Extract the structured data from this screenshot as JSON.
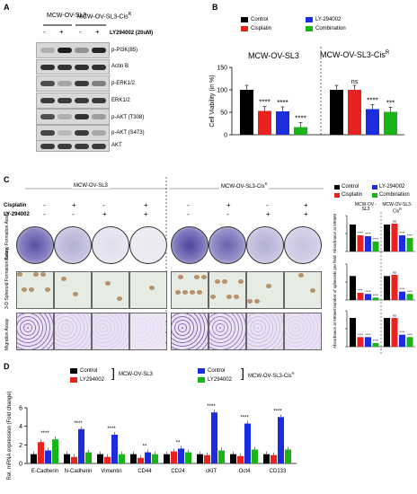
{
  "colors": {
    "control": "#000000",
    "cisplatin": "#e8231f",
    "ly": "#1a2ee0",
    "combination": "#18b418"
  },
  "panelA": {
    "label": "A",
    "group1": "MCW-OV-SL3",
    "group2": "MCW-OV-SL3-Cis",
    "group2_sup": "R",
    "treatment": "LY294002 (20uM)",
    "signs": [
      "-",
      "+",
      "-",
      "+"
    ],
    "blots": [
      "p-PI3K(85)",
      "Actin B",
      "p-ERK1/2",
      "ERK1/2",
      "p-AKT (T308)",
      "p-AKT (S473)",
      "AKT"
    ]
  },
  "panelB": {
    "label": "B",
    "title1": "MCW-OV-SL3",
    "title2": "MCW-OV-SL3-Cis",
    "title2_sup": "R",
    "legend": [
      "Control",
      "LY-294002",
      "Cisplatin",
      "Combination"
    ]
  },
  "panelC": {
    "label": "C",
    "group1": "MCW-OV-SL3",
    "group2": "MCW-OV-SL3-Cis",
    "group2_sup": "R",
    "row_cisplatin": "Cisplatin",
    "row_ly": "LY-294002",
    "cis_signs": [
      "-",
      "+",
      "-",
      "+",
      "-",
      "+",
      "-",
      "+"
    ],
    "ly_signs": [
      "-",
      "-",
      "+",
      "+",
      "-",
      "-",
      "+",
      "+"
    ],
    "assays": [
      "Colony Formation Assay",
      "3-D Spheroid Formation Assay",
      "Migration Assay"
    ],
    "legend": [
      "Control",
      "LY-294002",
      "Cisplatin",
      "Combination"
    ],
    "group_labels": [
      "MCW-OV -SL3",
      "MCW-OV-SL3-Cis"
    ],
    "y_labels": [
      "Absorbance at 590nM",
      "Number of spheroids per field",
      "Absorbance at 590nM"
    ]
  },
  "panelD": {
    "label": "D",
    "legend": [
      "Control",
      "LY294002",
      "Control",
      "LY294002"
    ],
    "group1": "MCW-OV-SL3",
    "group2": "MCW-OV-SL3-Cis",
    "group2_sup": "R"
  },
  "chart_data": [
    {
      "type": "bar",
      "panel": "B",
      "ylabel": "Cell Viability (in %)",
      "ylim": [
        0,
        150
      ],
      "yticks": [
        0,
        50,
        100,
        150
      ],
      "groups": [
        "MCW-OV-SL3",
        "MCW-OV-SL3-CisR"
      ],
      "series": [
        {
          "name": "Control",
          "values": [
            100,
            100
          ]
        },
        {
          "name": "Cisplatin",
          "values": [
            53,
            100
          ]
        },
        {
          "name": "LY-294002",
          "values": [
            52,
            57
          ]
        },
        {
          "name": "Combination",
          "values": [
            17,
            51
          ]
        }
      ],
      "significance": [
        [
          "",
          "****",
          "****",
          "****"
        ],
        [
          "",
          "ns",
          "****",
          "***"
        ]
      ]
    },
    {
      "type": "bar",
      "panel": "C",
      "rows": [
        "Colony Formation",
        "3-D Spheroid Formation",
        "Migration"
      ],
      "groups": [
        "MCW-OV -SL3",
        "MCW-OV-SL3-CisR"
      ],
      "series_order": [
        "Control",
        "Cisplatin",
        "LY-294002",
        "Combination"
      ],
      "values": [
        [
          [
            3.0,
            1.8,
            1.7,
            1.1
          ],
          [
            3.0,
            3.1,
            1.8,
            1.5
          ]
        ],
        [
          [
            40,
            12,
            10,
            4
          ],
          [
            40,
            42,
            14,
            10
          ]
        ],
        [
          [
            2.4,
            0.8,
            0.8,
            0.3
          ],
          [
            2.4,
            2.4,
            1.0,
            0.8
          ]
        ]
      ],
      "significance": [
        [
          [
            "",
            "****",
            "****",
            "****"
          ],
          [
            "",
            "ns",
            "****",
            "****"
          ]
        ],
        [
          [
            "",
            "***",
            "****",
            "****"
          ],
          [
            "",
            "ns",
            "****",
            "****"
          ]
        ],
        [
          [
            "",
            "****",
            "****",
            "****"
          ],
          [
            "",
            "ns",
            "****",
            "****"
          ]
        ]
      ]
    },
    {
      "type": "bar",
      "panel": "D",
      "ylabel": "Rel. mRNA expression (Fold change)",
      "ylim": [
        0,
        6
      ],
      "yticks": [
        0,
        2,
        4,
        6
      ],
      "categories": [
        "E-Cadherin",
        "N-Cadherin",
        "Vimentin",
        "CD44",
        "CD24",
        "cKIT",
        "Oct4",
        "CD133"
      ],
      "series": [
        {
          "name": "Control (MCW-OV-SL3)",
          "values": [
            1.0,
            1.0,
            1.0,
            1.0,
            1.0,
            1.0,
            1.0,
            1.0
          ]
        },
        {
          "name": "LY294002 (MCW-OV-SL3)",
          "values": [
            2.3,
            0.7,
            0.7,
            0.6,
            1.3,
            0.9,
            0.8,
            0.9
          ]
        },
        {
          "name": "Control (MCW-OV-SL3-CisR)",
          "values": [
            1.4,
            3.7,
            3.1,
            1.2,
            1.6,
            5.5,
            4.3,
            5.0
          ]
        },
        {
          "name": "LY294002 (MCW-OV-SL3-CisR)",
          "values": [
            2.6,
            1.2,
            1.0,
            1.0,
            1.2,
            1.4,
            1.5,
            1.5
          ]
        }
      ],
      "significance": [
        "****",
        "****",
        "****",
        "**",
        "**",
        "****",
        "****",
        "****"
      ]
    }
  ]
}
